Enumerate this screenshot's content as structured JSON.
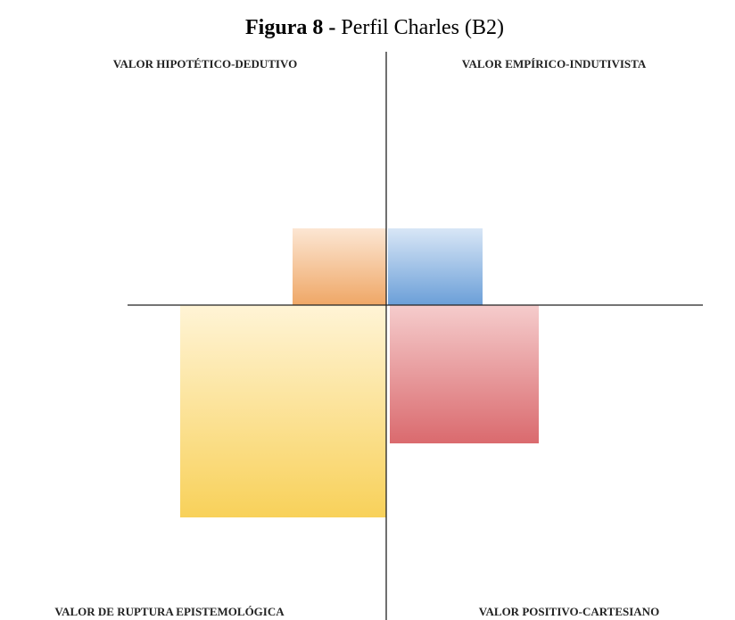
{
  "title": {
    "prefix": "Figura 8 -",
    "text": "Perfil Charles (B2)"
  },
  "quadrants": {
    "top_left": "VALOR HIPOTÉTICO-DEDUTIVO",
    "top_right": "VALOR EMPÍRICO-INDUTIVISTA",
    "bottom_left": "VALOR DE RUPTURA EPISTEMOLÓGICA",
    "bottom_right": "VALOR POSITIVO-CARTESIANO"
  }
}
